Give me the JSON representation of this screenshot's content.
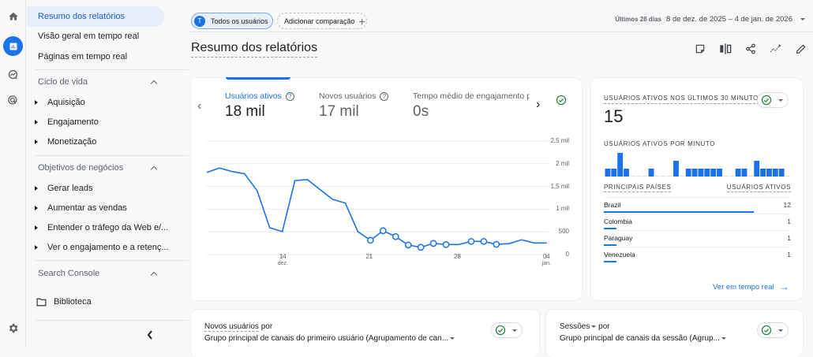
{
  "rail": {
    "icons": [
      {
        "name": "home-icon",
        "active": false
      },
      {
        "name": "reports-icon",
        "active": true
      },
      {
        "name": "explore-icon",
        "active": false
      },
      {
        "name": "advertising-icon",
        "active": false
      },
      {
        "name": "settings-icon",
        "active": false
      }
    ]
  },
  "nav": {
    "top_items": [
      {
        "label": "Resumo dos relatórios",
        "active": true
      },
      {
        "label": "Visão geral em tempo real",
        "active": false
      },
      {
        "label": "Páginas em tempo real",
        "active": false
      }
    ],
    "sections": [
      {
        "title": "Ciclo de vida",
        "items": [
          "Aquisição",
          "Engajamento",
          "Monetização"
        ]
      },
      {
        "title": "Objetivos de negócios",
        "items": [
          "Gerar leads",
          "Aumentar as vendas",
          "Entender o tráfego da Web e/...",
          "Ver o engajamento e a retenç..."
        ]
      },
      {
        "title": "Search Console",
        "items": []
      }
    ],
    "library_label": "Biblioteca",
    "collapse_icon": "chevron-left-icon"
  },
  "header": {
    "segment_chip": {
      "avatar_letter": "T",
      "label": "Todos os usuários"
    },
    "compare_chip": {
      "label": "Adicionar comparação",
      "icon": "+"
    },
    "date_range": {
      "preset": "Últimos 28 dias",
      "range": "8 de dez. de 2025 – 4 de jan. de 2026"
    },
    "page_title": "Resumo dos relatórios",
    "toolbar_icons": [
      "note-icon",
      "compare-columns-icon",
      "share-icon",
      "insights-icon",
      "edit-icon"
    ]
  },
  "overview_card": {
    "metrics": [
      {
        "label": "Usuários ativos",
        "value": "18 mil",
        "active": true
      },
      {
        "label": "Novos usuários",
        "value": "17 mil",
        "active": false
      },
      {
        "label": "Tempo médio de engajamento p",
        "value": "0s",
        "active": false
      }
    ]
  },
  "chart_data": {
    "type": "line",
    "title": "Usuários ativos",
    "x": [
      "8 dez.",
      "9",
      "10",
      "11",
      "12",
      "13",
      "14 dez.",
      "15",
      "16",
      "17",
      "18",
      "19",
      "20",
      "21",
      "22",
      "23",
      "24",
      "25",
      "26",
      "27",
      "28",
      "29",
      "30",
      "31",
      "01 jan.",
      "02",
      "03",
      "04 jan."
    ],
    "series": [
      {
        "name": "Usuários ativos",
        "color": "#1a73e8",
        "values": [
          1810,
          1905,
          1830,
          1780,
          1405,
          590,
          505,
          1630,
          1650,
          1430,
          1215,
          1135,
          505,
          315,
          525,
          395,
          210,
          160,
          245,
          220,
          220,
          290,
          290,
          225,
          240,
          325,
          255,
          255
        ],
        "marked_points": [
          13,
          14,
          15,
          16,
          17,
          18,
          19,
          21,
          22,
          23
        ]
      }
    ],
    "x_tick_labels": [
      {
        "label": "14",
        "sub": "dez.",
        "index": 6
      },
      {
        "label": "21",
        "sub": "",
        "index": 13
      },
      {
        "label": "28",
        "sub": "",
        "index": 20
      },
      {
        "label": "04",
        "sub": "jan.",
        "index": 27
      }
    ],
    "y_tick_labels": [
      "0",
      "500",
      "1 mil",
      "1,5 mil",
      "2 mil",
      "2,5 mil"
    ],
    "ylim": [
      0,
      2500
    ],
    "grid": true,
    "xlabel": "",
    "ylabel": ""
  },
  "realtime_card": {
    "header": "USUÁRIOS ATIVOS NOS ÚLTIMOS 30 MINUTOS",
    "value": "15",
    "per_minute_label": "USUÁRIOS ATIVOS POR MINUTO",
    "per_minute": [
      1,
      1,
      3,
      1,
      0,
      0,
      0,
      1,
      0,
      0,
      0,
      2,
      0,
      1,
      1,
      1,
      1,
      1,
      1,
      0,
      0,
      1,
      1,
      0,
      2,
      1,
      1,
      1,
      1,
      0
    ],
    "table_headers": [
      "PRINCIPAIS PAÍSES",
      "USUÁRIOS ATIVOS"
    ],
    "countries": [
      {
        "name": "Brazil",
        "value": "12",
        "share": 0.8
      },
      {
        "name": "Colombia",
        "value": "1",
        "share": 0.067
      },
      {
        "name": "Paraguay",
        "value": "1",
        "share": 0.067
      },
      {
        "name": "Venezuela",
        "value": "1",
        "share": 0.067
      }
    ],
    "link_label": "Ver em tempo real",
    "link_icon": "→"
  },
  "bottom_cards": [
    {
      "metric": "Novos usuários",
      "por": " por",
      "dimension": "Grupo principal de canais do primeiro usuário (Agrupamento de can..."
    },
    {
      "metric": "Sessões",
      "por": " por",
      "dimension": "Grupo principal de canais da sessão (Agrup..."
    }
  ],
  "colors": {
    "accent": "#1a73e8",
    "check_green": "#188038",
    "active_nav_bg": "#e8eefa"
  }
}
